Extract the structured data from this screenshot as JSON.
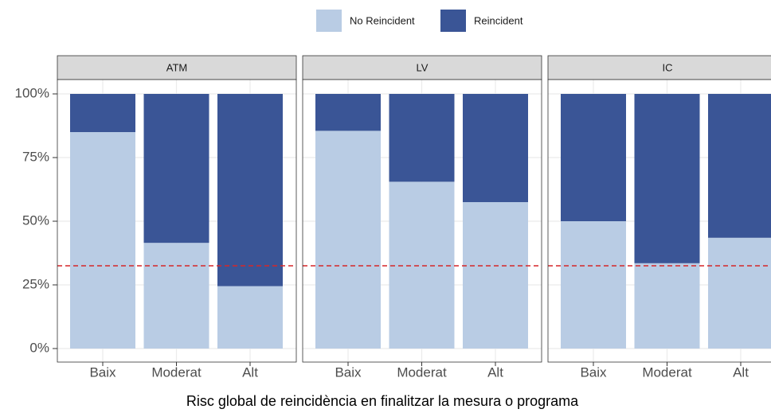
{
  "chart_data": {
    "type": "bar",
    "stacked": true,
    "xlabel": "Risc global de reincidència en finalitzar la mesura o programa",
    "categories": [
      "Baix",
      "Moderat",
      "Alt"
    ],
    "legend": "top",
    "series": [
      {
        "name": "No Reincident",
        "color": "#b9cce4"
      },
      {
        "name": "Reincident",
        "color": "#3a5596"
      }
    ],
    "facets": [
      {
        "title": "ATM",
        "series": [
          {
            "values": [
              85,
              41.5,
              24.5
            ]
          },
          {
            "values": [
              15,
              58.5,
              75.5
            ]
          }
        ]
      },
      {
        "title": "LV",
        "series": [
          {
            "values": [
              85.5,
              65.5,
              57.5
            ]
          },
          {
            "values": [
              14.5,
              34.5,
              42.5
            ]
          }
        ]
      },
      {
        "title": "IC",
        "series": [
          {
            "values": [
              50,
              33.5,
              43.5
            ]
          },
          {
            "values": [
              50,
              66.5,
              56.5
            ]
          }
        ]
      }
    ],
    "ylim": [
      0,
      100
    ],
    "yticks": [
      {
        "value": 0,
        "label": "0%"
      },
      {
        "value": 25,
        "label": "25%"
      },
      {
        "value": 50,
        "label": "50%"
      },
      {
        "value": 75,
        "label": "75%"
      },
      {
        "value": 100,
        "label": "100%"
      }
    ],
    "grid": true,
    "reference_line": {
      "value": 32.5,
      "color": "#d62728"
    }
  }
}
